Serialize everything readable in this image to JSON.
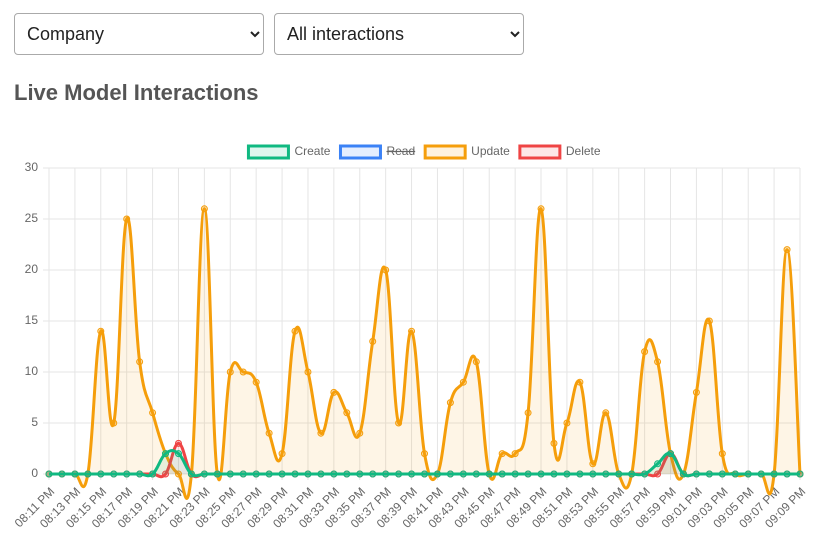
{
  "controls": {
    "scope": "Company",
    "filter": "All interactions"
  },
  "heading": "Live Model Interactions",
  "chart_data": {
    "type": "line",
    "categories": [
      "08:11 PM",
      null,
      "08:13 PM",
      null,
      "08:15 PM",
      null,
      "08:17 PM",
      null,
      "08:19 PM",
      null,
      "08:21 PM",
      null,
      "08:23 PM",
      null,
      "08:25 PM",
      null,
      "08:27 PM",
      null,
      "08:29 PM",
      null,
      "08:31 PM",
      null,
      "08:33 PM",
      null,
      "08:35 PM",
      null,
      "08:37 PM",
      null,
      "08:39 PM",
      null,
      "08:41 PM",
      null,
      "08:43 PM",
      null,
      "08:45 PM",
      null,
      "08:47 PM",
      null,
      "08:49 PM",
      null,
      "08:51 PM",
      null,
      "08:53 PM",
      null,
      "08:55 PM",
      null,
      "08:57 PM",
      null,
      "08:59 PM",
      null,
      "09:01 PM",
      null,
      "09:03 PM",
      null,
      "09:05 PM",
      null,
      "09:07 PM",
      null,
      "09:09 PM"
    ],
    "series": [
      {
        "name": "Create",
        "color": "#10b981",
        "values": [
          0,
          0,
          0,
          0,
          0,
          0,
          0,
          0,
          0,
          2,
          2,
          0,
          0,
          0,
          0,
          0,
          0,
          0,
          0,
          0,
          0,
          0,
          0,
          0,
          0,
          0,
          0,
          0,
          0,
          0,
          0,
          0,
          0,
          0,
          0,
          0,
          0,
          0,
          0,
          0,
          0,
          0,
          0,
          0,
          0,
          0,
          0,
          1,
          2,
          0,
          0,
          0,
          0,
          0,
          0,
          0,
          0,
          0,
          0
        ]
      },
      {
        "name": "Read",
        "color": "#3b82f6",
        "hidden": true,
        "values": [
          null,
          null,
          null,
          null,
          null,
          null,
          null,
          null,
          null,
          null,
          null,
          null,
          null,
          null,
          null,
          null,
          null,
          null,
          null,
          null,
          null,
          null,
          null,
          null,
          null,
          null,
          null,
          null,
          null,
          null,
          null,
          null,
          null,
          null,
          null,
          null,
          null,
          null,
          null,
          null,
          null,
          null,
          null,
          null,
          null,
          null,
          null,
          null,
          null,
          null,
          null,
          null,
          null,
          null,
          null,
          null,
          null,
          null,
          null
        ]
      },
      {
        "name": "Update",
        "color": "#f59e0b",
        "values": [
          0,
          0,
          0,
          0,
          14,
          5,
          25,
          11,
          6,
          2,
          0,
          0,
          26,
          0,
          10,
          10,
          9,
          4,
          2,
          14,
          10,
          4,
          8,
          6,
          4,
          13,
          20,
          5,
          14,
          2,
          0,
          7,
          9,
          11,
          0,
          2,
          2,
          6,
          26,
          3,
          5,
          9,
          1,
          6,
          0,
          0,
          12,
          11,
          2,
          0,
          8,
          15,
          2,
          0,
          0,
          0,
          0,
          22,
          0
        ]
      },
      {
        "name": "Delete",
        "color": "#ef4444",
        "values": [
          0,
          0,
          0,
          0,
          0,
          0,
          0,
          0,
          0,
          0,
          3,
          0,
          0,
          0,
          0,
          0,
          0,
          0,
          0,
          0,
          0,
          0,
          0,
          0,
          0,
          0,
          0,
          0,
          0,
          0,
          0,
          0,
          0,
          0,
          0,
          0,
          0,
          0,
          0,
          0,
          0,
          0,
          0,
          0,
          0,
          0,
          0,
          0,
          2,
          0,
          0,
          0,
          0,
          0,
          0,
          0,
          0,
          0,
          0
        ]
      }
    ],
    "ylim": [
      0,
      30
    ],
    "yticks": [
      0,
      5,
      10,
      15,
      20,
      25,
      30
    ],
    "grid": true,
    "legend": "top"
  }
}
